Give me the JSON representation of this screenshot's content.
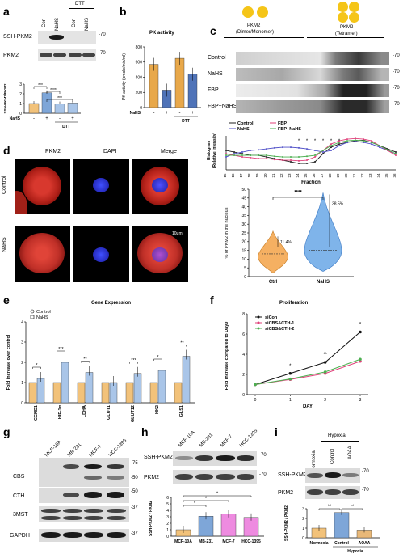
{
  "panel_labels": [
    "a",
    "b",
    "c",
    "d",
    "e",
    "f",
    "g",
    "h",
    "i"
  ],
  "a": {
    "lanes": [
      "Con",
      "NaHS",
      "Con",
      "NaHS"
    ],
    "dtt_label": "DTT",
    "blots": [
      "SSH-PKM2",
      "PKM2"
    ],
    "mw": [
      "-70",
      "-70"
    ],
    "ylabel": "SSH-PKM2/PKM2",
    "ticks": [
      "0",
      "1",
      "2",
      "3"
    ],
    "xrow_label": "NaHS",
    "xsigns": [
      "-",
      "+",
      "-",
      "+"
    ],
    "xbracket": "DTT",
    "sig": [
      "***",
      "****",
      "***"
    ],
    "chart_data": {
      "type": "bar",
      "categories": [
        "Con",
        "NaHS",
        "Con+DTT",
        "NaHS+DTT"
      ],
      "values": [
        1.0,
        2.1,
        0.95,
        1.05
      ],
      "ylim": [
        0,
        3
      ],
      "ylabel": "SSH-PKM2/PKM2"
    }
  },
  "b": {
    "title": "PK activity",
    "ylabel": "PK activity (pmole/min/ml)",
    "ticks": [
      "0",
      "200",
      "400",
      "600",
      "800"
    ],
    "xrow_label": "NaHS",
    "xsigns": [
      "-",
      "+",
      "-",
      "+"
    ],
    "xbracket": "DTT",
    "chart_data": {
      "type": "bar",
      "categories": [
        "Con",
        "NaHS",
        "Con+DTT",
        "NaHS+DTT"
      ],
      "values": [
        570,
        230,
        650,
        440
      ],
      "ylim": [
        0,
        800
      ],
      "ylabel": "PK activity (pmole/min/ml)"
    }
  },
  "c": {
    "top_left": "PKM2",
    "top_left_sub": "(Dimer/Monomer)",
    "top_right": "PKM2",
    "top_right_sub": "(Tetramer)",
    "rows": [
      "Control",
      "NaHS",
      "FBP",
      "FBP+NaHS"
    ],
    "mw": [
      "-70",
      "-70",
      "-70",
      "-70"
    ],
    "ylabel": "Histogram",
    "ylabel2": "(Relative Intensity)",
    "xlabel": "Fraction",
    "fractions": [
      "15",
      "16",
      "17",
      "18",
      "19",
      "20",
      "21",
      "22",
      "23",
      "24",
      "25",
      "26",
      "27",
      "28",
      "29",
      "30",
      "31",
      "32",
      "33",
      "34",
      "35",
      "36"
    ],
    "legend": [
      "Control",
      "NaHS",
      "FBP",
      "FBP+NaHS"
    ],
    "colors": [
      "#1f1f1f",
      "#5050c8",
      "#e0407a",
      "#4caf50"
    ],
    "stars": [
      "*",
      "*",
      "*",
      "*",
      "*",
      "*"
    ],
    "chart_data": {
      "type": "line",
      "x": [
        15,
        16,
        17,
        18,
        19,
        20,
        21,
        22,
        23,
        24,
        25,
        26,
        27,
        28,
        29,
        30,
        31,
        32,
        33,
        34,
        35,
        36
      ],
      "xlabel": "Fraction",
      "series": [
        {
          "name": "Control",
          "values": [
            0.6,
            0.55,
            0.5,
            0.45,
            0.45,
            0.4,
            0.35,
            0.3,
            0.25,
            0.2,
            0.2,
            0.25,
            0.5,
            0.7,
            0.8,
            0.85,
            0.9,
            0.92,
            0.85,
            0.75,
            0.65,
            0.55
          ]
        },
        {
          "name": "NaHS",
          "values": [
            0.4,
            0.5,
            0.55,
            0.6,
            0.62,
            0.65,
            0.68,
            0.7,
            0.7,
            0.68,
            0.65,
            0.6,
            0.55,
            0.6,
            0.75,
            0.85,
            0.88,
            0.85,
            0.8,
            0.7,
            0.6,
            0.5
          ]
        },
        {
          "name": "FBP",
          "values": [
            0.5,
            0.45,
            0.4,
            0.38,
            0.35,
            0.35,
            0.32,
            0.3,
            0.3,
            0.28,
            0.3,
            0.4,
            0.6,
            0.8,
            0.9,
            0.95,
            0.97,
            0.95,
            0.9,
            0.75,
            0.6,
            0.45
          ]
        },
        {
          "name": "FBP+NaHS",
          "values": [
            0.45,
            0.45,
            0.45,
            0.45,
            0.45,
            0.45,
            0.42,
            0.4,
            0.4,
            0.4,
            0.42,
            0.45,
            0.6,
            0.75,
            0.85,
            0.9,
            0.92,
            0.9,
            0.85,
            0.75,
            0.62,
            0.5
          ]
        }
      ]
    }
  },
  "d": {
    "cols": [
      "PKM2",
      "DAPI",
      "Merge"
    ],
    "rows": [
      "Control",
      "NaHS"
    ],
    "scale": "10μm",
    "ylabel": "% of PKM2 in the nucleus",
    "ticks": [
      "0",
      "5",
      "10",
      "15",
      "20",
      "25",
      "30",
      "35",
      "40",
      "45",
      "50"
    ],
    "groups": [
      "Ctrl",
      "NaHS"
    ],
    "pct": [
      "11.4%",
      "38.5%"
    ],
    "sig": "****"
  },
  "e": {
    "title": "Gene Expression",
    "ylabel": "Fold increase over control",
    "ticks": [
      "0",
      "1",
      "2",
      "3",
      "4"
    ],
    "legend": [
      "Control",
      "NaHS"
    ],
    "sig": [
      "*",
      "***",
      "**",
      "",
      "***",
      "*",
      "**"
    ],
    "chart_data": {
      "type": "bar",
      "categories": [
        "CCND1",
        "HIF-1α",
        "LDHA",
        "GLUT1",
        "GLUT12",
        "HK2",
        "GLS1"
      ],
      "series": [
        {
          "name": "Control",
          "values": [
            1,
            1,
            1,
            1,
            1,
            1,
            1
          ]
        },
        {
          "name": "NaHS",
          "values": [
            1.2,
            2.0,
            1.5,
            1.0,
            1.45,
            1.6,
            2.3
          ]
        }
      ],
      "ylim": [
        0,
        4
      ],
      "ylabel": "Fold increase over control"
    }
  },
  "f": {
    "title": "Proliferation",
    "ylabel": "Fold increase compared to Day0",
    "xlabel": "DAY",
    "ticks": [
      "0",
      "2",
      "4",
      "6",
      "8"
    ],
    "xticks": [
      "0",
      "1",
      "2",
      "3"
    ],
    "legend": [
      "siCon",
      "siCBS&CTH-1",
      "siCBS&CTH-2"
    ],
    "colors": [
      "#111111",
      "#e0407a",
      "#4caf50"
    ],
    "sig": [
      "*",
      "**",
      "*"
    ],
    "chart_data": {
      "type": "line",
      "x": [
        0,
        1,
        2,
        3
      ],
      "xlabel": "DAY",
      "ylim": [
        0,
        8
      ],
      "series": [
        {
          "name": "siCon",
          "values": [
            1,
            2.1,
            3.2,
            6.2
          ]
        },
        {
          "name": "siCBS&CTH-1",
          "values": [
            1,
            1.5,
            2.1,
            3.3
          ]
        },
        {
          "name": "siCBS&CTH-2",
          "values": [
            1,
            1.55,
            2.25,
            3.5
          ]
        }
      ]
    }
  },
  "g": {
    "lanes": [
      "MCF-10A",
      "MB-231",
      "MCF-7",
      "HCC-1395"
    ],
    "blots": [
      "CBS",
      "CTH",
      "3MST",
      "GAPDH"
    ],
    "mw": [
      "-75",
      "-50",
      "-50",
      "-37",
      "-37"
    ]
  },
  "h": {
    "lanes": [
      "MCF-10A",
      "MB-231",
      "MCF-7",
      "HCC-1395"
    ],
    "blots": [
      "SSH-PKM2",
      "PKM2"
    ],
    "mw": [
      "-70",
      "-70"
    ],
    "ylabel": "SSH-PKM2 / PKM2",
    "ticks": [
      "0",
      "1",
      "2",
      "3",
      "4",
      "5",
      "6"
    ],
    "sig": [
      "*",
      "*",
      "*"
    ],
    "chart_data": {
      "type": "bar",
      "categories": [
        "MCF-10A",
        "MB-231",
        "MCF-7",
        "HCC-1395"
      ],
      "values": [
        1.0,
        3.1,
        3.4,
        2.9
      ],
      "ylim": [
        0,
        6
      ],
      "ylabel": "SSH-PKM2 / PKM2"
    }
  },
  "i": {
    "lanes": [
      "Normoxia",
      "Control",
      "AOAA"
    ],
    "bracket": "Hypoxia",
    "blots": [
      "SSH-PKM2",
      "PKM2"
    ],
    "mw": [
      "-70",
      "-70"
    ],
    "ylabel": "SSH-PKM2 / PKM2",
    "ticks": [
      "0",
      "1",
      "2",
      "3"
    ],
    "sig": [
      "**",
      "**"
    ],
    "chart_data": {
      "type": "bar",
      "categories": [
        "Normoxia",
        "Control",
        "AOAA"
      ],
      "values": [
        1.0,
        2.6,
        0.8
      ],
      "ylim": [
        0,
        3
      ],
      "ylabel": "SSH-PKM2 / PKM2"
    }
  }
}
